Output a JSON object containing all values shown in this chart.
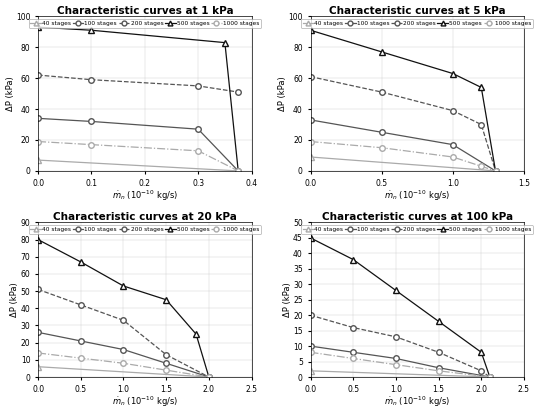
{
  "subplots": [
    {
      "title": "Characteristic curves at 1 kPa",
      "xlabel": "$\\dot{m}_n$ (10$^{-10}$ kg/s)",
      "ylabel": "ΔP (kPa)",
      "xlim": [
        0,
        0.4
      ],
      "ylim": [
        0,
        100
      ],
      "xticks": [
        0,
        0.1,
        0.2,
        0.3,
        0.4
      ],
      "yticks": [
        0,
        20,
        40,
        60,
        80,
        100
      ],
      "series": [
        {
          "label": "40 stages",
          "x": [
            0,
            0.375
          ],
          "y": [
            7,
            0
          ],
          "style": "-",
          "marker": "^",
          "color": "#aaaaaa",
          "mfc": "white"
        },
        {
          "label": "100 stages",
          "x": [
            0,
            0.1,
            0.3,
            0.375
          ],
          "y": [
            34,
            32,
            27,
            0
          ],
          "style": "-",
          "marker": "o",
          "color": "#555555",
          "mfc": "white"
        },
        {
          "label": "200 stages",
          "x": [
            0,
            0.1,
            0.3,
            0.375
          ],
          "y": [
            62,
            59,
            55,
            51
          ],
          "style": "--",
          "marker": "o",
          "color": "#555555",
          "mfc": "white"
        },
        {
          "label": "500 stages",
          "x": [
            0,
            0.1,
            0.35,
            0.375
          ],
          "y": [
            93,
            91,
            83,
            0
          ],
          "style": "-",
          "marker": "^",
          "color": "#111111",
          "mfc": "white"
        },
        {
          "label": "1000 stages",
          "x": [
            0,
            0.1,
            0.3,
            0.375
          ],
          "y": [
            19,
            17,
            13,
            0
          ],
          "style": "-.",
          "marker": "o",
          "color": "#aaaaaa",
          "mfc": "white"
        }
      ]
    },
    {
      "title": "Characteristic curves at 5 kPa",
      "xlabel": "$\\dot{m}_n$ (10$^{-10}$ kg/s)",
      "ylabel": "ΔP (kPa)",
      "xlim": [
        0,
        1.5
      ],
      "ylim": [
        0,
        100
      ],
      "xticks": [
        0,
        0.5,
        1.0,
        1.5
      ],
      "yticks": [
        0,
        20,
        40,
        60,
        80,
        100
      ],
      "series": [
        {
          "label": "40 stages",
          "x": [
            0,
            1.3
          ],
          "y": [
            9,
            0
          ],
          "style": "-",
          "marker": "^",
          "color": "#aaaaaa",
          "mfc": "white"
        },
        {
          "label": "100 stages",
          "x": [
            0,
            0.5,
            1.0,
            1.3
          ],
          "y": [
            33,
            25,
            17,
            0
          ],
          "style": "-",
          "marker": "o",
          "color": "#555555",
          "mfc": "white"
        },
        {
          "label": "200 stages",
          "x": [
            0,
            0.5,
            1.0,
            1.2,
            1.3
          ],
          "y": [
            61,
            51,
            39,
            30,
            0
          ],
          "style": "--",
          "marker": "o",
          "color": "#555555",
          "mfc": "white"
        },
        {
          "label": "500 stages",
          "x": [
            0,
            0.5,
            1.0,
            1.2,
            1.3
          ],
          "y": [
            91,
            77,
            63,
            54,
            0
          ],
          "style": "-",
          "marker": "^",
          "color": "#111111",
          "mfc": "white"
        },
        {
          "label": "1000 stages",
          "x": [
            0,
            0.5,
            1.0,
            1.2,
            1.3
          ],
          "y": [
            19,
            15,
            9,
            3,
            0
          ],
          "style": "-.",
          "marker": "o",
          "color": "#aaaaaa",
          "mfc": "white"
        }
      ]
    },
    {
      "title": "Characteristic curves at 20 kPa",
      "xlabel": "$\\dot{m}_n$ (10$^{-10}$ kg/s)",
      "ylabel": "ΔP (kPa)",
      "xlim": [
        0,
        2.5
      ],
      "ylim": [
        0,
        90
      ],
      "xticks": [
        0,
        0.5,
        1.0,
        1.5,
        2.0,
        2.5
      ],
      "yticks": [
        0,
        10,
        20,
        30,
        40,
        50,
        60,
        70,
        80,
        90
      ],
      "series": [
        {
          "label": "40 stages",
          "x": [
            0,
            2.0
          ],
          "y": [
            6,
            0
          ],
          "style": "-",
          "marker": "^",
          "color": "#aaaaaa",
          "mfc": "white"
        },
        {
          "label": "100 stages",
          "x": [
            0,
            0.5,
            1.0,
            1.5,
            2.0
          ],
          "y": [
            26,
            21,
            16,
            8,
            0
          ],
          "style": "-",
          "marker": "o",
          "color": "#555555",
          "mfc": "white"
        },
        {
          "label": "200 stages",
          "x": [
            0,
            0.5,
            1.0,
            1.5,
            2.0
          ],
          "y": [
            51,
            42,
            33,
            13,
            0
          ],
          "style": "--",
          "marker": "o",
          "color": "#555555",
          "mfc": "white"
        },
        {
          "label": "500 stages",
          "x": [
            0,
            0.5,
            1.0,
            1.5,
            1.85,
            2.0
          ],
          "y": [
            80,
            67,
            53,
            45,
            25,
            0
          ],
          "style": "-",
          "marker": "^",
          "color": "#111111",
          "mfc": "white"
        },
        {
          "label": "1000 stages",
          "x": [
            0,
            0.5,
            1.0,
            1.5,
            2.0
          ],
          "y": [
            14,
            11,
            8,
            4,
            0
          ],
          "style": "-.",
          "marker": "o",
          "color": "#aaaaaa",
          "mfc": "white"
        }
      ]
    },
    {
      "title": "Characteristic curves at 100 kPa",
      "xlabel": "$\\dot{m}_n$ (10$^{-10}$ kg/s)",
      "ylabel": "ΔP (kPa)",
      "xlim": [
        0,
        2.5
      ],
      "ylim": [
        0,
        50
      ],
      "xticks": [
        0,
        0.5,
        1.0,
        1.5,
        2.0,
        2.5
      ],
      "yticks": [
        0,
        5,
        10,
        15,
        20,
        25,
        30,
        35,
        40,
        45,
        50
      ],
      "series": [
        {
          "label": "40 stages",
          "x": [
            0,
            2.1
          ],
          "y": [
            2,
            0
          ],
          "style": "-",
          "marker": "^",
          "color": "#aaaaaa",
          "mfc": "white"
        },
        {
          "label": "100 stages",
          "x": [
            0,
            0.5,
            1.0,
            1.5,
            2.1
          ],
          "y": [
            10,
            8,
            6,
            3,
            0
          ],
          "style": "-",
          "marker": "o",
          "color": "#555555",
          "mfc": "white"
        },
        {
          "label": "200 stages",
          "x": [
            0,
            0.5,
            1.0,
            1.5,
            2.0,
            2.1
          ],
          "y": [
            20,
            16,
            13,
            8,
            2,
            0
          ],
          "style": "--",
          "marker": "o",
          "color": "#555555",
          "mfc": "white"
        },
        {
          "label": "500 stages",
          "x": [
            0,
            0.5,
            1.0,
            1.5,
            2.0,
            2.1
          ],
          "y": [
            45,
            38,
            28,
            18,
            8,
            0
          ],
          "style": "-",
          "marker": "^",
          "color": "#111111",
          "mfc": "white"
        },
        {
          "label": "1000 stages",
          "x": [
            0,
            0.5,
            1.0,
            1.5,
            2.1
          ],
          "y": [
            8,
            6,
            4,
            2,
            0
          ],
          "style": "-.",
          "marker": "o",
          "color": "#aaaaaa",
          "mfc": "white"
        }
      ]
    }
  ],
  "legend_labels": [
    "40 stages",
    "100 stages",
    "200 stages",
    "500 stages",
    "1000 stages"
  ],
  "legend_styles": [
    {
      "style": "-",
      "marker": "^",
      "color": "#aaaaaa",
      "mfc": "white"
    },
    {
      "style": "-",
      "marker": "o",
      "color": "#555555",
      "mfc": "white"
    },
    {
      "style": "--",
      "marker": "o",
      "color": "#555555",
      "mfc": "white"
    },
    {
      "style": "-",
      "marker": "^",
      "color": "#111111",
      "mfc": "white"
    },
    {
      "style": "-.",
      "marker": "o",
      "color": "#aaaaaa",
      "mfc": "white"
    }
  ],
  "background_color": "#ffffff"
}
